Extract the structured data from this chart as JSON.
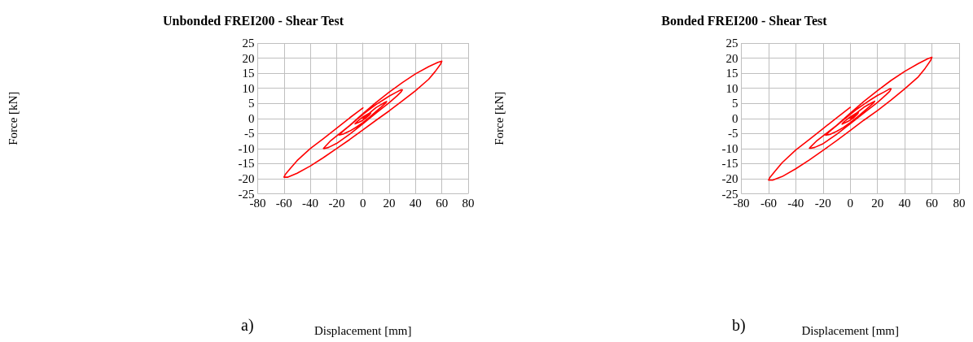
{
  "chart_data": [
    {
      "type": "line",
      "title": "Unbonded FREI200 - Shear Test",
      "xlabel": "Displacement [mm]",
      "ylabel": "Force [kN]",
      "annotations": [
        "a)"
      ],
      "xlim": [
        -80,
        80
      ],
      "xticks": [
        -80,
        -60,
        -40,
        -20,
        0,
        20,
        40,
        60,
        80
      ],
      "ylim": [
        -25,
        25
      ],
      "yticks": [
        -25,
        -20,
        -15,
        -10,
        -5,
        0,
        5,
        10,
        15,
        20,
        25
      ],
      "grid": true,
      "marker": "none",
      "line_style": "solid",
      "series": [
        {
          "color": "#ff0000",
          "x": [
            0,
            3,
            6,
            5,
            3,
            0,
            -3,
            -6,
            -5,
            -3,
            0,
            5,
            10,
            15,
            18,
            17,
            14,
            10,
            5,
            0,
            -5,
            -10,
            -15,
            -18,
            -17,
            -14,
            -10,
            -5,
            0,
            5,
            10,
            15,
            20,
            25,
            29,
            30,
            29,
            26,
            20,
            10,
            0,
            -10,
            -20,
            -26,
            -29,
            -30,
            -29,
            -25,
            -20,
            -10,
            0,
            10,
            20,
            30,
            40,
            50,
            57,
            60,
            59,
            55,
            50,
            40,
            30,
            20,
            10,
            0,
            -10,
            -20,
            -30,
            -40,
            -50,
            -57,
            -60,
            -59,
            -55,
            -50,
            -40,
            -30,
            -20,
            -10,
            0
          ],
          "values": [
            0,
            0.9,
            1.8,
            1.2,
            0.4,
            -0.6,
            -1.3,
            -1.8,
            -1.3,
            -0.6,
            0.5,
            1.8,
            3.6,
            4.9,
            5.6,
            5,
            3.8,
            2.3,
            0.4,
            -1.4,
            -2.9,
            -4.2,
            -5.2,
            -5.5,
            -5,
            -3.8,
            -2.4,
            -0.5,
            1.3,
            3,
            4.6,
            6,
            7.4,
            8.6,
            9.5,
            9.5,
            8.8,
            7.5,
            5.2,
            1.8,
            -1.8,
            -5.2,
            -8.3,
            -9.6,
            -10,
            -10,
            -9.5,
            -7.6,
            -5.8,
            -2.3,
            1.6,
            5.3,
            8.7,
            11.9,
            14.8,
            17.2,
            18.6,
            19,
            18,
            15.6,
            13,
            9.2,
            5.8,
            2.5,
            -0.6,
            -3.8,
            -7,
            -10,
            -13,
            -15.8,
            -18.2,
            -19.5,
            -19.5,
            -18.6,
            -16.5,
            -14,
            -10,
            -6.7,
            -3.3,
            0.2,
            3.5
          ]
        }
      ]
    },
    {
      "type": "line",
      "title": "Bonded FREI200 - Shear Test",
      "xlabel": "Displacement [mm]",
      "ylabel": "Force [kN]",
      "annotations": [
        "b)"
      ],
      "xlim": [
        -80,
        80
      ],
      "xticks": [
        -80,
        -60,
        -40,
        -20,
        0,
        20,
        40,
        60,
        80
      ],
      "ylim": [
        -25,
        25
      ],
      "yticks": [
        -25,
        -20,
        -15,
        -10,
        -5,
        0,
        5,
        10,
        15,
        20,
        25
      ],
      "grid": true,
      "marker": "none",
      "line_style": "solid",
      "series": [
        {
          "color": "#ff0000",
          "x": [
            0,
            3,
            6,
            5,
            3,
            0,
            -3,
            -6,
            -5,
            -3,
            0,
            5,
            10,
            15,
            18,
            17,
            14,
            10,
            5,
            0,
            -5,
            -10,
            -15,
            -18,
            -17,
            -14,
            -10,
            -5,
            0,
            5,
            10,
            15,
            20,
            25,
            29,
            30,
            29,
            26,
            20,
            10,
            0,
            -10,
            -20,
            -26,
            -29,
            -30,
            -29,
            -25,
            -20,
            -10,
            0,
            10,
            20,
            30,
            40,
            50,
            57,
            60,
            59,
            55,
            50,
            40,
            30,
            20,
            10,
            0,
            -10,
            -20,
            -30,
            -40,
            -50,
            -57,
            -60,
            -59,
            -55,
            -50,
            -40,
            -30,
            -20,
            -10,
            0
          ],
          "values": [
            0,
            0.9,
            1.9,
            1.3,
            0.4,
            -0.6,
            -1.3,
            -1.9,
            -1.3,
            -0.6,
            0.5,
            1.9,
            3.7,
            5,
            5.7,
            5.1,
            3.9,
            2.3,
            0.4,
            -1.4,
            -3,
            -4.3,
            -5.3,
            -5.6,
            -5.1,
            -3.9,
            -2.4,
            -0.5,
            1.3,
            3.1,
            4.7,
            6.2,
            7.6,
            8.8,
            9.8,
            9.8,
            9,
            7.7,
            5.3,
            1.8,
            -1.8,
            -5.3,
            -8.4,
            -9.6,
            -9.9,
            -9.9,
            -9.4,
            -7.6,
            -5.8,
            -2.3,
            1.7,
            5.6,
            9.2,
            12.6,
            15.6,
            18.2,
            19.8,
            20.3,
            19.2,
            16.6,
            13.8,
            9.8,
            6.1,
            2.6,
            -0.6,
            -4,
            -7.4,
            -10.6,
            -13.8,
            -16.7,
            -19.3,
            -20.5,
            -20.5,
            -19.6,
            -17.4,
            -14.7,
            -10.5,
            -7,
            -3.4,
            0.2,
            3.7
          ]
        }
      ]
    }
  ]
}
